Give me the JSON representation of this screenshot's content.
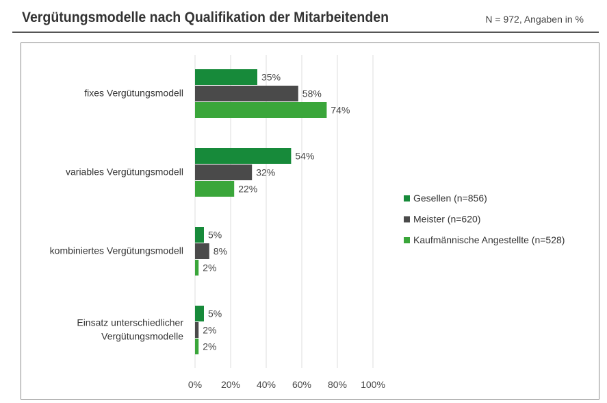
{
  "header": {
    "title": "Vergütungsmodelle nach Qualifikation der Mitarbeitenden",
    "subtitle": "N = 972, Angaben in %"
  },
  "chart_data": {
    "type": "bar",
    "orientation": "horizontal",
    "categories": [
      [
        "fixes Vergütungsmodell"
      ],
      [
        "variables Vergütungsmodell"
      ],
      [
        "kombiniertes Vergütungsmodell"
      ],
      [
        "Einsatz unterschiedlicher",
        "Vergütungsmodelle"
      ]
    ],
    "series": [
      {
        "name": "Gesellen (n=856)",
        "color": "#178a3a",
        "values": [
          35,
          54,
          5,
          5
        ]
      },
      {
        "name": "Meister (n=620)",
        "color": "#4a4a4a",
        "values": [
          58,
          32,
          8,
          2
        ]
      },
      {
        "name": "Kaufmännische Angestellte (n=528)",
        "color": "#3aa63a",
        "values": [
          74,
          22,
          2,
          2
        ]
      }
    ],
    "xlim": [
      0,
      100
    ],
    "xticks": [
      "0%",
      "20%",
      "40%",
      "60%",
      "80%",
      "100%"
    ],
    "grid": true,
    "legend": "right"
  }
}
